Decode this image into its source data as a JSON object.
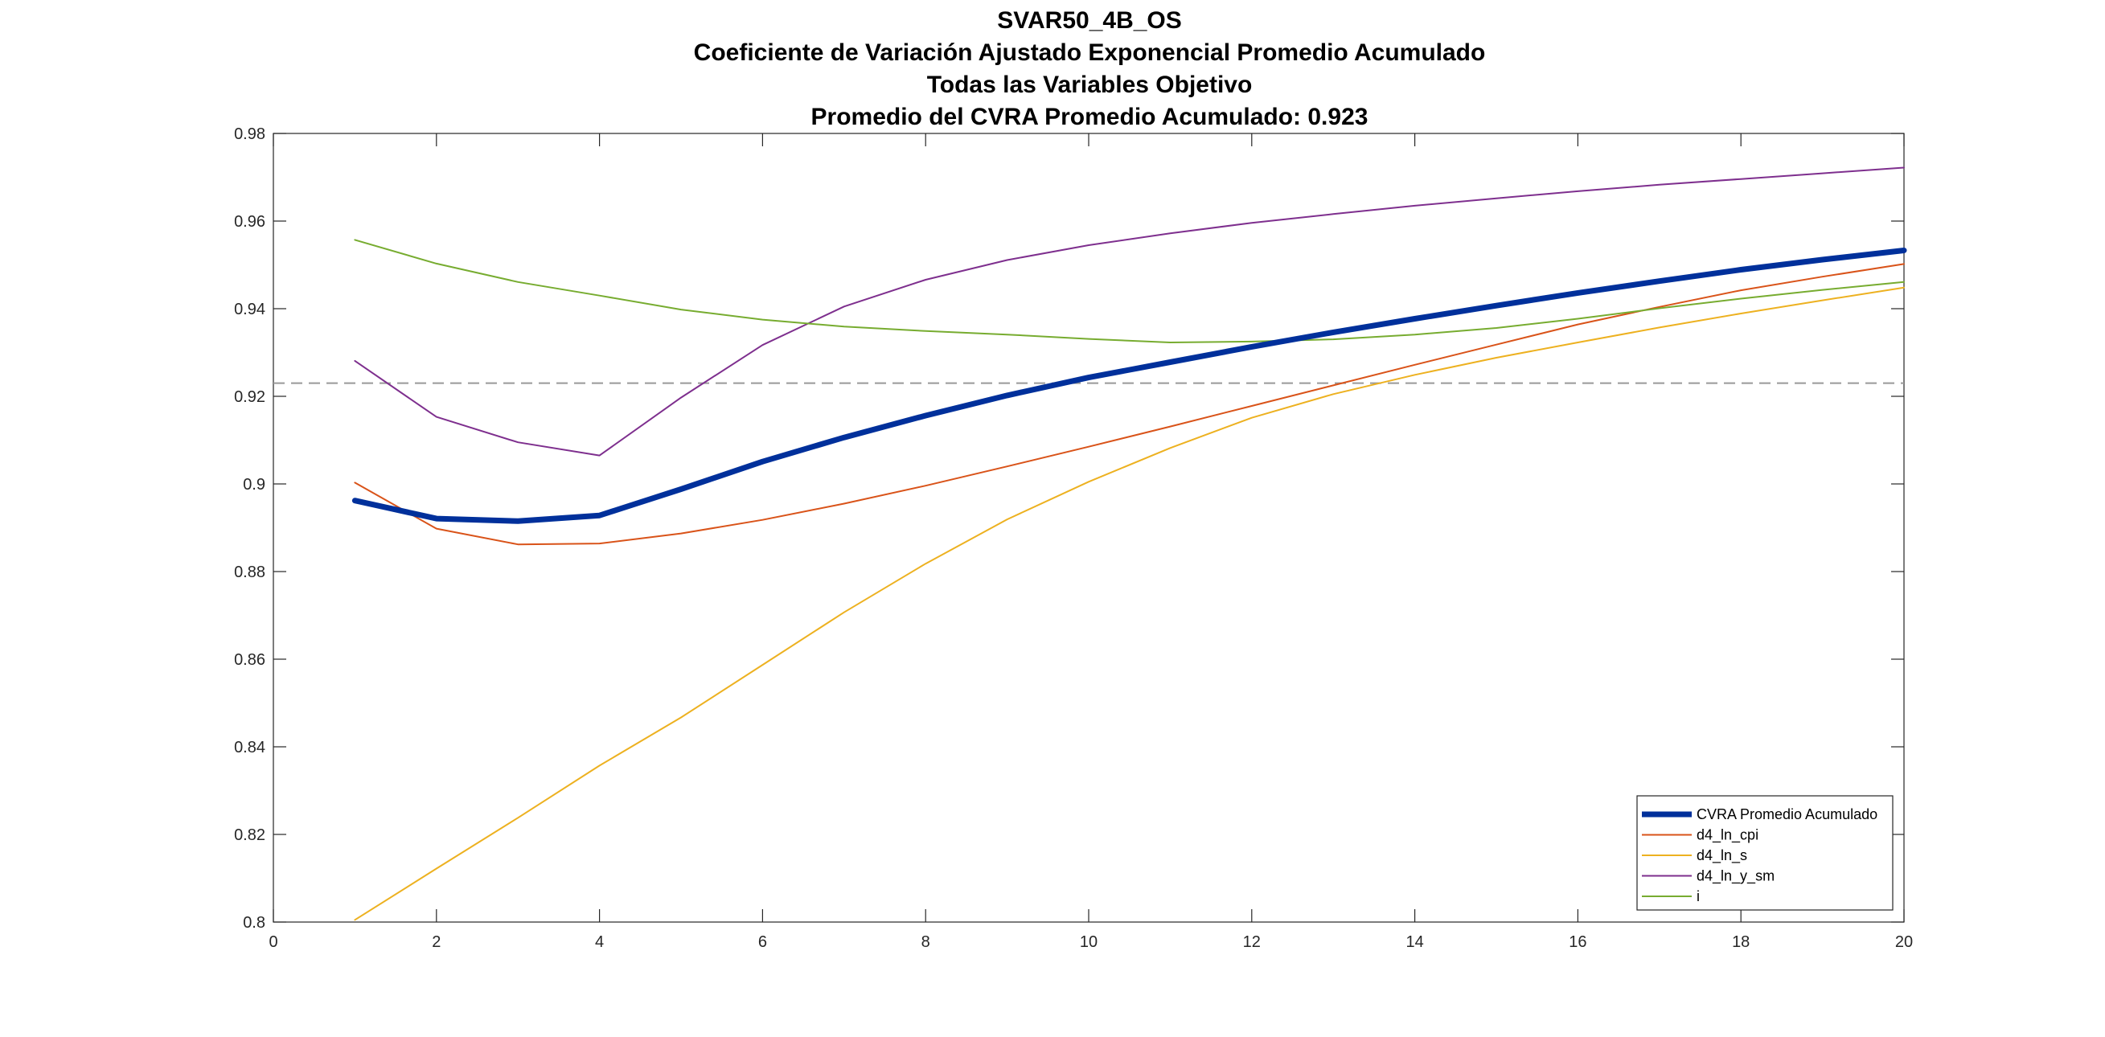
{
  "chart_data": {
    "type": "line",
    "title_lines": [
      "SVAR50_4B_OS",
      "Coeficiente de Variación Ajustado Exponencial Promedio Acumulado",
      "Todas las Variables Objetivo",
      "Promedio del CVRA Promedio Acumulado:  0.923"
    ],
    "xlabel": "",
    "ylabel": "",
    "xlim": [
      0,
      20
    ],
    "ylim": [
      0.8,
      0.98
    ],
    "x_ticks": [
      0,
      2,
      4,
      6,
      8,
      10,
      12,
      14,
      16,
      18,
      20
    ],
    "x_tick_labels": [
      "0",
      "2",
      "4",
      "6",
      "8",
      "10",
      "12",
      "14",
      "16",
      "18",
      "20"
    ],
    "y_ticks": [
      0.8,
      0.82,
      0.84,
      0.86,
      0.88,
      0.9,
      0.92,
      0.94,
      0.96,
      0.98
    ],
    "y_tick_labels": [
      "0.8",
      "0.82",
      "0.84",
      "0.86",
      "0.88",
      "0.9",
      "0.92",
      "0.94",
      "0.96",
      "0.98"
    ],
    "grid": false,
    "legend_position": "bottom-right",
    "x": [
      1,
      2,
      3,
      4,
      5,
      6,
      7,
      8,
      9,
      10,
      11,
      12,
      13,
      14,
      15,
      16,
      17,
      18,
      19,
      20
    ],
    "series": [
      {
        "name": "CVRA Promedio Acumulado",
        "color": "#00309B",
        "thick": true,
        "values": [
          0.8962,
          0.8921,
          0.8915,
          0.8928,
          0.8988,
          0.9051,
          0.9106,
          0.9156,
          0.9202,
          0.9243,
          0.9278,
          0.9313,
          0.9346,
          0.9377,
          0.9407,
          0.9436,
          0.9463,
          0.9489,
          0.9512,
          0.9533
        ]
      },
      {
        "name": "d4_ln_cpi",
        "color": "#D95319",
        "values": [
          0.9003,
          0.8898,
          0.8862,
          0.8864,
          0.8887,
          0.8918,
          0.8955,
          0.8996,
          0.904,
          0.9085,
          0.9131,
          0.9178,
          0.9225,
          0.9272,
          0.9318,
          0.9364,
          0.9404,
          0.9442,
          0.9473,
          0.9502
        ]
      },
      {
        "name": "d4_ln_s",
        "color": "#EDB120",
        "values": [
          0.8005,
          0.8122,
          0.8238,
          0.8357,
          0.8467,
          0.8587,
          0.8707,
          0.8818,
          0.8919,
          0.9005,
          0.9082,
          0.9151,
          0.9205,
          0.9249,
          0.9288,
          0.9323,
          0.9357,
          0.9389,
          0.9419,
          0.9448
        ]
      },
      {
        "name": "d4_ln_y_sm",
        "color": "#7E2F8E",
        "values": [
          0.9281,
          0.9153,
          0.9095,
          0.9065,
          0.9197,
          0.9317,
          0.9405,
          0.9466,
          0.9511,
          0.9545,
          0.9572,
          0.9596,
          0.9616,
          0.9635,
          0.9652,
          0.9668,
          0.9683,
          0.9696,
          0.9709,
          0.9722
        ]
      },
      {
        "name": "i",
        "color": "#77AC30",
        "values": [
          0.9557,
          0.9503,
          0.9461,
          0.943,
          0.9398,
          0.9375,
          0.9359,
          0.9349,
          0.9341,
          0.9331,
          0.9323,
          0.9325,
          0.933,
          0.9341,
          0.9356,
          0.9377,
          0.9401,
          0.9423,
          0.9443,
          0.9461
        ]
      }
    ],
    "reference_line": {
      "y": 0.923,
      "color": "#999999",
      "style": "dashed"
    }
  }
}
